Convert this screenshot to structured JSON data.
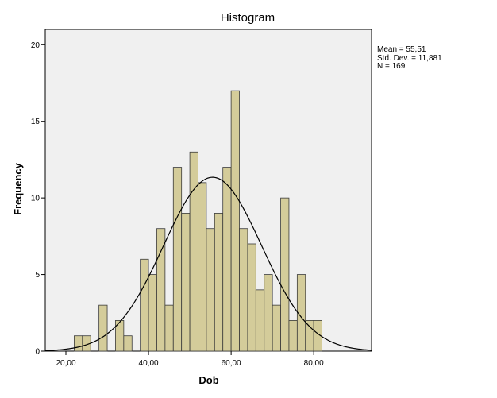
{
  "chart_data": {
    "type": "bar",
    "title": "Histogram",
    "xlabel": "Dob",
    "ylabel": "Frequency",
    "xlim": [
      15,
      94
    ],
    "ylim": [
      0,
      21
    ],
    "xticks": [
      20,
      40,
      60,
      80
    ],
    "xtick_labels": [
      "20,00",
      "40,00",
      "60,00",
      "80,00"
    ],
    "yticks": [
      0,
      5,
      10,
      15,
      20
    ],
    "ytick_labels": [
      "0",
      "5",
      "10",
      "15",
      "20"
    ],
    "bin_width": 2,
    "bins": [
      {
        "start": 22,
        "value": 1
      },
      {
        "start": 24,
        "value": 1
      },
      {
        "start": 26,
        "value": 0
      },
      {
        "start": 28,
        "value": 3
      },
      {
        "start": 30,
        "value": 0
      },
      {
        "start": 32,
        "value": 2
      },
      {
        "start": 34,
        "value": 1
      },
      {
        "start": 36,
        "value": 0
      },
      {
        "start": 38,
        "value": 6
      },
      {
        "start": 40,
        "value": 5
      },
      {
        "start": 42,
        "value": 8
      },
      {
        "start": 44,
        "value": 3
      },
      {
        "start": 46,
        "value": 12
      },
      {
        "start": 48,
        "value": 9
      },
      {
        "start": 50,
        "value": 13
      },
      {
        "start": 52,
        "value": 11
      },
      {
        "start": 54,
        "value": 8
      },
      {
        "start": 56,
        "value": 9
      },
      {
        "start": 58,
        "value": 12
      },
      {
        "start": 60,
        "value": 17
      },
      {
        "start": 62,
        "value": 8
      },
      {
        "start": 64,
        "value": 7
      },
      {
        "start": 66,
        "value": 4
      },
      {
        "start": 68,
        "value": 5
      },
      {
        "start": 70,
        "value": 3
      },
      {
        "start": 72,
        "value": 10
      },
      {
        "start": 74,
        "value": 2
      },
      {
        "start": 76,
        "value": 5
      },
      {
        "start": 78,
        "value": 2
      },
      {
        "start": 80,
        "value": 2
      }
    ],
    "normal_curve": {
      "mean": 55.51,
      "sd": 11.881,
      "n": 169
    },
    "stats": {
      "mean_text": "Mean = 55,51",
      "sd_text": "Std. Dev. = 11,881",
      "n_text": "N = 169"
    },
    "grid": false,
    "legend": "top-right",
    "colors": {
      "bar_fill": "#d4cc9a",
      "bar_stroke": "#3a3a3a",
      "plot_background": "#f0f0f0",
      "curve": "#000000"
    }
  }
}
